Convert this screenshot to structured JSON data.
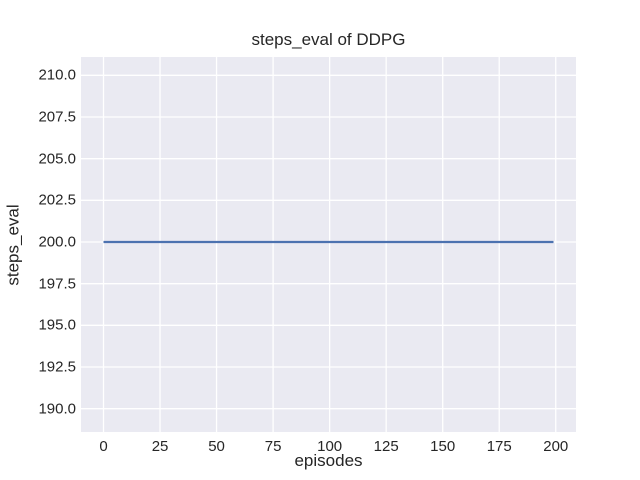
{
  "figure": {
    "title": "steps_eval of DDPG",
    "xlabel": "episodes",
    "ylabel": "steps_eval"
  },
  "colors": {
    "figure_bg": "#ffffff",
    "axes_bg": "#eaeaf2",
    "grid": "#ffffff",
    "line": "#4c72b0",
    "text": "#262626"
  },
  "chart_data": {
    "type": "line",
    "title": "steps_eval of DDPG",
    "xlabel": "episodes",
    "ylabel": "steps_eval",
    "xlim": [
      -9.95,
      208.95
    ],
    "ylim": [
      188.6,
      211.1
    ],
    "xticks": {
      "values": [
        0,
        25,
        50,
        75,
        100,
        125,
        150,
        175,
        200
      ],
      "labels": [
        "0",
        "25",
        "50",
        "75",
        "100",
        "125",
        "150",
        "175",
        "200"
      ]
    },
    "yticks": {
      "values": [
        190,
        192.5,
        195,
        197.5,
        200,
        202.5,
        205,
        207.5,
        210
      ],
      "labels": [
        "190.0",
        "192.5",
        "195.0",
        "197.5",
        "200.0",
        "202.5",
        "205.0",
        "207.5",
        "210.0"
      ]
    },
    "grid": true,
    "legend": null,
    "series": [
      {
        "name": "DDPG",
        "color": "#4c72b0",
        "linewidth": 2.2,
        "x": [
          0,
          199
        ],
        "y": [
          200,
          200
        ],
        "description": "constant steps_eval value of 200 for every evaluated episode from 0 to 199"
      }
    ]
  }
}
